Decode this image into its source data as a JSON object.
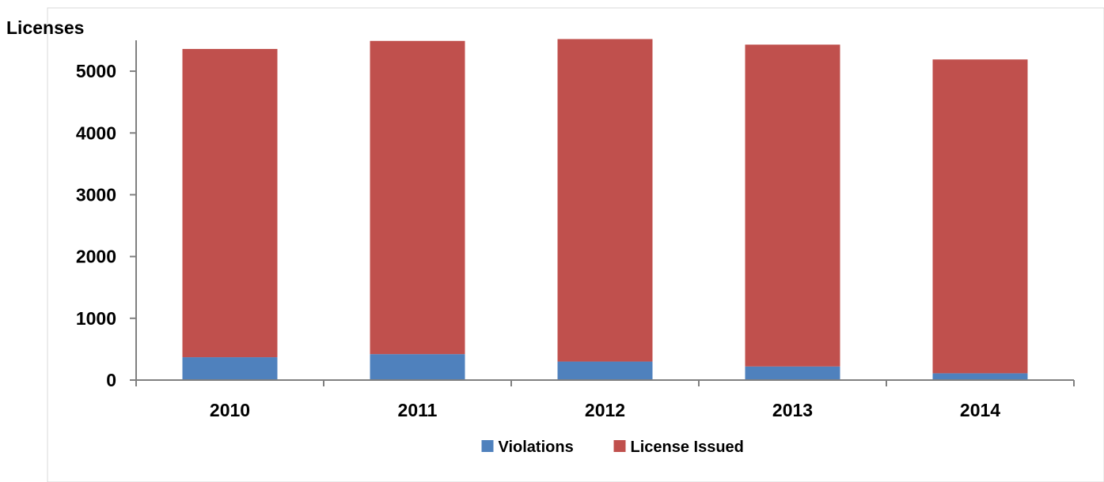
{
  "chart_data": {
    "type": "bar",
    "stacked": true,
    "ylabel": "Licenses",
    "xlabel": "",
    "categories": [
      "2010",
      "2011",
      "2012",
      "2013",
      "2014"
    ],
    "ylim": [
      0,
      5500
    ],
    "yticks": [
      0,
      1000,
      2000,
      3000,
      4000,
      5000
    ],
    "grid": false,
    "legend_position": "bottom",
    "series": [
      {
        "name": "Violations",
        "color": "#4F81BD",
        "values": [
          370,
          420,
          300,
          220,
          110
        ]
      },
      {
        "name": "License Issued",
        "color": "#C0504D",
        "values": [
          4990,
          5070,
          5220,
          5210,
          5080
        ]
      }
    ]
  }
}
